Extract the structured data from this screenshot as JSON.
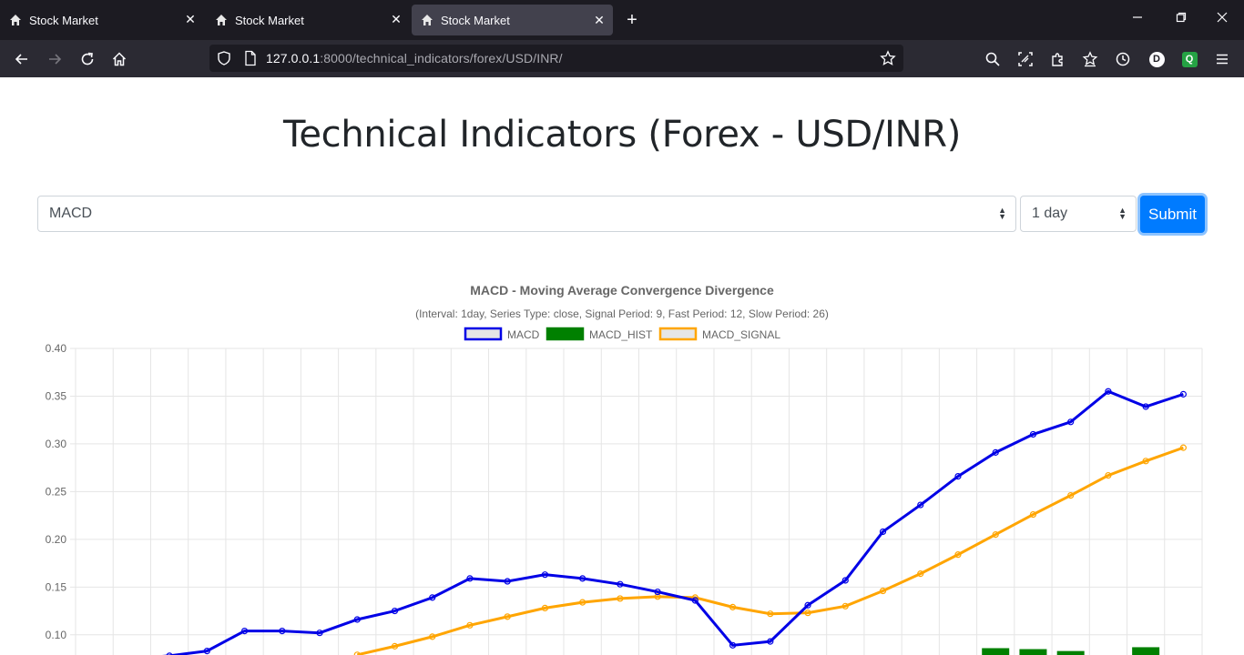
{
  "browser": {
    "tabs": [
      {
        "title": "Stock Market",
        "active": false
      },
      {
        "title": "Stock Market",
        "active": false
      },
      {
        "title": "Stock Market",
        "active": true
      }
    ],
    "url_host": "127.0.0.1",
    "url_rest": ":8000/technical_indicators/forex/USD/INR/",
    "profile_initial": "D",
    "extension_initial": "Q"
  },
  "page": {
    "title": "Technical Indicators (Forex - USD/INR)",
    "indicator_select": "MACD",
    "interval_select": "1 day",
    "submit_label": "Submit"
  },
  "chart_data": {
    "type": "line",
    "title": "MACD - Moving Average Convergence Divergence",
    "subtitle": "(Interval: 1day, Series Type: close, Signal Period: 9, Fast Period: 12, Slow Period: 26)",
    "legend": [
      "MACD",
      "MACD_HIST",
      "MACD_SIGNAL"
    ],
    "legend_position": "top",
    "grid": true,
    "ylim_visible": [
      0.1,
      0.4
    ],
    "y_ticks": [
      "0.40",
      "0.35",
      "0.30",
      "0.25",
      "0.20",
      "0.15",
      "0.10"
    ],
    "series": [
      {
        "name": "MACD",
        "color": "#0000e6",
        "values": [
          null,
          0.075,
          0.078,
          0.083,
          0.104,
          0.104,
          0.102,
          0.116,
          0.125,
          0.139,
          0.159,
          0.156,
          0.163,
          0.159,
          0.153,
          0.145,
          0.136,
          0.089,
          0.093,
          0.131,
          0.157,
          0.208,
          0.236,
          0.266,
          0.291,
          0.31,
          0.323,
          0.355,
          0.339,
          0.352
        ]
      },
      {
        "name": "MACD_SIGNAL",
        "color": "#ffa500",
        "values": [
          null,
          null,
          null,
          null,
          null,
          null,
          null,
          0.079,
          0.088,
          0.098,
          0.11,
          0.119,
          0.128,
          0.134,
          0.138,
          0.14,
          0.139,
          0.129,
          0.122,
          0.123,
          0.13,
          0.146,
          0.164,
          0.184,
          0.205,
          0.226,
          0.246,
          0.267,
          0.282,
          0.296
        ]
      },
      {
        "name": "MACD_HIST",
        "color": "#008000",
        "values": [
          null,
          null,
          null,
          null,
          null,
          null,
          null,
          null,
          null,
          null,
          null,
          null,
          null,
          null,
          null,
          null,
          null,
          null,
          null,
          null,
          null,
          null,
          null,
          null,
          0.086,
          0.085,
          0.083,
          null,
          0.087,
          null
        ]
      }
    ]
  }
}
